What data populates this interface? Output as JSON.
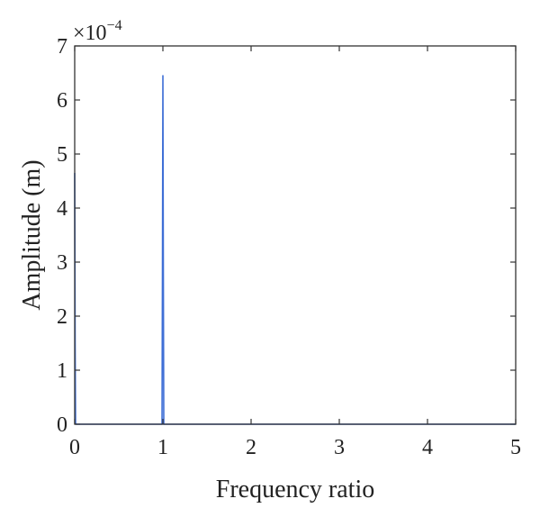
{
  "chart_data": {
    "type": "line",
    "title": "",
    "xlabel": "Frequency ratio",
    "ylabel": "Amplitude (m)",
    "y_multiplier_base": "×10",
    "y_multiplier_exponent": "−4",
    "xlim": [
      0,
      5
    ],
    "ylim": [
      0,
      7
    ],
    "x_ticks": [
      0,
      1,
      2,
      3,
      4,
      5
    ],
    "x_tick_labels": [
      "0",
      "1",
      "2",
      "3",
      "4",
      "5"
    ],
    "y_ticks": [
      0,
      1,
      2,
      3,
      4,
      5,
      6,
      7
    ],
    "y_tick_labels": [
      "0",
      "1",
      "2",
      "3",
      "4",
      "5",
      "6",
      "7"
    ],
    "grid": false,
    "series": [
      {
        "color": "#3f6fd6",
        "x": [
          0,
          0.005,
          0.01,
          0.015,
          0.99,
          0.995,
          1.0,
          1.005,
          1.01,
          1.02,
          5.0
        ],
        "y": [
          4.65,
          1.5,
          0.02,
          0.0,
          0.0,
          2.8,
          6.45,
          2.8,
          0.0,
          0.0,
          0.0
        ]
      }
    ]
  }
}
